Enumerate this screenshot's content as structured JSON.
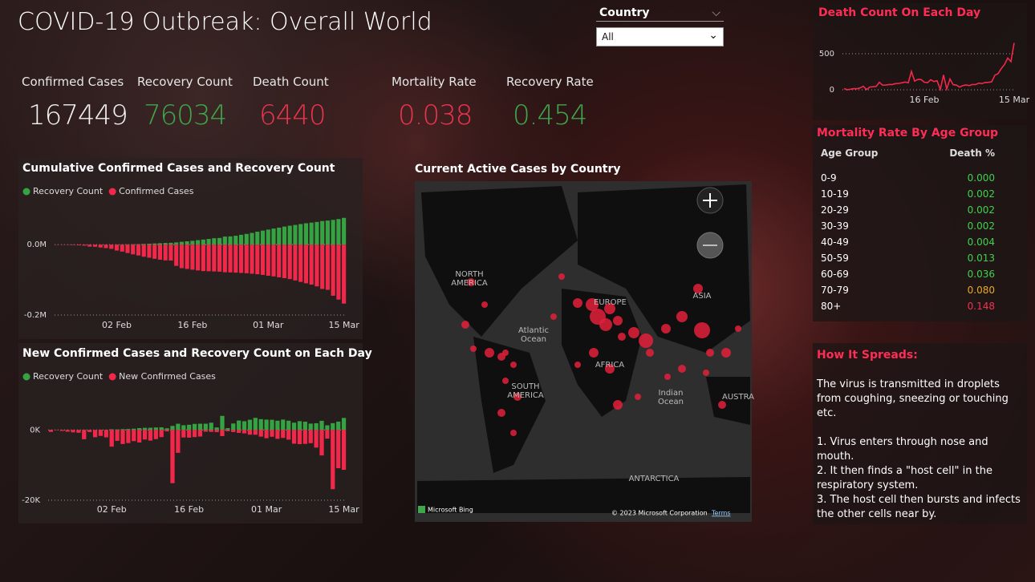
{
  "header": {
    "title": "COVID-19 Outbreak: Overall World"
  },
  "filter": {
    "label": "Country",
    "value": "All"
  },
  "kpis": [
    {
      "label": "Confirmed Cases",
      "value": 167449,
      "color": "#f2f2f2"
    },
    {
      "label": "Recovery Count",
      "value": 76034,
      "color": "#3fa64a"
    },
    {
      "label": "Death Count",
      "value": 6440,
      "color": "#e8344e"
    },
    {
      "label": "Mortality Rate",
      "value": 0.038,
      "color": "#e8344e"
    },
    {
      "label": "Recovery Rate",
      "value": 0.454,
      "color": "#3fa64a"
    }
  ],
  "chart_data": [
    {
      "type": "bar",
      "title": "Cumulative Confirmed Cases and Recovery Count",
      "categories": [
        null,
        null,
        null,
        null,
        null,
        null,
        null,
        null,
        null,
        null,
        null,
        "02 Feb",
        null,
        null,
        null,
        null,
        null,
        null,
        null,
        null,
        null,
        null,
        null,
        null,
        null,
        "16 Feb",
        null,
        null,
        null,
        null,
        null,
        null,
        null,
        null,
        null,
        null,
        null,
        null,
        null,
        "01 Mar",
        null,
        null,
        null,
        null,
        null,
        null,
        null,
        null,
        null,
        null,
        null,
        null,
        null,
        "15 Mar"
      ],
      "series": [
        {
          "name": "Recovery Count",
          "color": "#36a343",
          "values": [
            28,
            30,
            36,
            39,
            52,
            61,
            107,
            126,
            143,
            222,
            284,
            472,
            623,
            852,
            1124,
            1487,
            2011,
            2616,
            3244,
            3946,
            4683,
            5150,
            6295,
            8058,
            9395,
            10865,
            12583,
            14352,
            16121,
            18177,
            18890,
            22886,
            23394,
            25227,
            27905,
            30384,
            33277,
            36711,
            39782,
            42716,
            45602,
            48228,
            51170,
            53796,
            55865,
            58358,
            60694,
            62494,
            64404,
            67003,
            68324,
            70251,
            72624,
            76034
          ]
        },
        {
          "name": "Confirmed Cases",
          "color": "#f2284b",
          "values": [
            -555,
            -654,
            -941,
            -1434,
            -2118,
            -2927,
            -5578,
            -6166,
            -8234,
            -9927,
            -12038,
            -16787,
            -19881,
            -23892,
            -27635,
            -30817,
            -34391,
            -37120,
            -40150,
            -42762,
            -44802,
            -45221,
            -60368,
            -66885,
            -69030,
            -71224,
            -73258,
            -75136,
            -75639,
            -76197,
            -76819,
            -78572,
            -78958,
            -79561,
            -80406,
            -81388,
            -82746,
            -84112,
            -86011,
            -88369,
            -90306,
            -92840,
            -95120,
            -97886,
            -101801,
            -105847,
            -109821,
            -113590,
            -118620,
            -125875,
            -128352,
            -145205,
            -156101,
            -167449
          ]
        }
      ],
      "ylim": [
        -200000,
        80000
      ],
      "yticks": [
        {
          "value": -200000,
          "label": "-0.2M"
        },
        {
          "value": 0,
          "label": "0.0M"
        }
      ],
      "grid": true
    },
    {
      "type": "bar",
      "title": "New Confirmed Cases and Recovery Count on Each Day",
      "categories": [
        null,
        null,
        null,
        null,
        null,
        null,
        null,
        null,
        null,
        null,
        null,
        "02 Feb",
        null,
        null,
        null,
        null,
        null,
        null,
        null,
        null,
        null,
        null,
        null,
        null,
        null,
        "16 Feb",
        null,
        null,
        null,
        null,
        null,
        null,
        null,
        null,
        null,
        null,
        null,
        null,
        null,
        "01 Mar",
        null,
        null,
        null,
        null,
        null,
        null,
        null,
        null,
        null,
        null,
        null,
        null,
        null,
        "15 Mar"
      ],
      "series": [
        {
          "name": "Recovery Count",
          "color": "#36a343",
          "values": [
            28,
            2,
            6,
            3,
            13,
            9,
            46,
            19,
            17,
            79,
            62,
            188,
            151,
            229,
            272,
            363,
            524,
            605,
            628,
            702,
            737,
            467,
            1145,
            1763,
            1337,
            1470,
            1718,
            1769,
            1769,
            2056,
            713,
            3996,
            508,
            1833,
            2678,
            2479,
            2893,
            3434,
            3071,
            2934,
            2886,
            2626,
            2942,
            2626,
            2069,
            2493,
            2336,
            1800,
            1910,
            2599,
            1321,
            1927,
            2373,
            3410
          ]
        },
        {
          "name": "New Confirmed Cases",
          "color": "#f2284b",
          "values": [
            -555,
            -99,
            -287,
            -493,
            -684,
            -809,
            -2651,
            -588,
            -2068,
            -1693,
            -2111,
            -4749,
            -3094,
            -4011,
            -3743,
            -3182,
            -3574,
            -2729,
            -3030,
            -2612,
            -2040,
            -419,
            -15147,
            -6517,
            -2145,
            -2194,
            -2034,
            -1878,
            -503,
            -558,
            -622,
            -1753,
            -386,
            -603,
            -845,
            -982,
            -1358,
            -1366,
            -1899,
            -2358,
            -1937,
            -2534,
            -2280,
            -2766,
            -3915,
            -4046,
            -3974,
            -3769,
            -5030,
            -7255,
            -2477,
            -16853,
            -10896,
            -11348
          ]
        }
      ],
      "ylim": [
        -20000,
        6000
      ],
      "yticks": [
        {
          "value": -20000,
          "label": "-20K"
        },
        {
          "value": 0,
          "label": "0K"
        }
      ],
      "grid": true
    },
    {
      "type": "line",
      "title": "Death Count On Each Day",
      "categories": [
        null,
        null,
        null,
        null,
        null,
        null,
        null,
        null,
        null,
        null,
        null,
        null,
        null,
        null,
        null,
        null,
        null,
        null,
        null,
        null,
        null,
        null,
        null,
        null,
        null,
        "16 Feb",
        null,
        null,
        null,
        null,
        null,
        null,
        null,
        null,
        null,
        null,
        null,
        null,
        null,
        null,
        null,
        null,
        null,
        null,
        null,
        null,
        null,
        null,
        null,
        null,
        null,
        null,
        null,
        "15 Mar"
      ],
      "series": [
        {
          "name": "Death Count",
          "color": "#f2284b",
          "values": [
            17,
            1,
            8,
            16,
            14,
            26,
            49,
            2,
            38,
            42,
            46,
            103,
            64,
            66,
            73,
            73,
            86,
            89,
            97,
            108,
            97,
            254,
            121,
            143,
            142,
            106,
            98,
            139,
            115,
            125,
            4,
            207,
            10,
            150,
            71,
            64,
            38,
            58,
            67,
            58,
            73,
            72,
            92,
            87,
            101,
            103,
            110,
            202,
            223,
            295,
            350,
            440,
            390,
            650
          ]
        }
      ],
      "ylim": [
        0,
        700
      ],
      "yticks": [
        0,
        500
      ],
      "grid": true
    }
  ],
  "map": {
    "title": "Current Active Cases by Country",
    "labels": [
      "NORTH AMERICA",
      "EUROPE",
      "ASIA",
      "AFRICA",
      "SOUTH AMERICA",
      "Atlantic Ocean",
      "Indian Ocean",
      "AUSTRA",
      "ANTARCTICA"
    ],
    "brand": "Microsoft Bing",
    "copyright": "© 2023 Microsoft Corporation",
    "terms": "Terms"
  },
  "age_table": {
    "title": "Mortality Rate By Age Group",
    "columns": [
      "Age Group",
      "Death %"
    ],
    "rows": [
      {
        "group": "0-9",
        "death_pct": "0.000",
        "color": "#3fd24f"
      },
      {
        "group": "10-19",
        "death_pct": "0.002",
        "color": "#3fd24f"
      },
      {
        "group": "20-29",
        "death_pct": "0.002",
        "color": "#3fd24f"
      },
      {
        "group": "30-39",
        "death_pct": "0.002",
        "color": "#3fd24f"
      },
      {
        "group": "40-49",
        "death_pct": "0.004",
        "color": "#3fd24f"
      },
      {
        "group": "50-59",
        "death_pct": "0.013",
        "color": "#3fd24f"
      },
      {
        "group": "60-69",
        "death_pct": "0.036",
        "color": "#3fd24f"
      },
      {
        "group": "70-79",
        "death_pct": "0.080",
        "color": "#e8a92a"
      },
      {
        "group": "80+",
        "death_pct": "0.148",
        "color": "#f0344e"
      }
    ]
  },
  "info": {
    "title": "How It Spreads:",
    "paragraphs": [
      "The virus is transmitted in droplets from coughing,  sneezing or touching etc.",
      "1. Virus enters through nose and mouth.",
      "2. It then finds a \"host cell\" in the respiratory system.",
      "3. The host cell then bursts and infects the other cells near by."
    ]
  }
}
